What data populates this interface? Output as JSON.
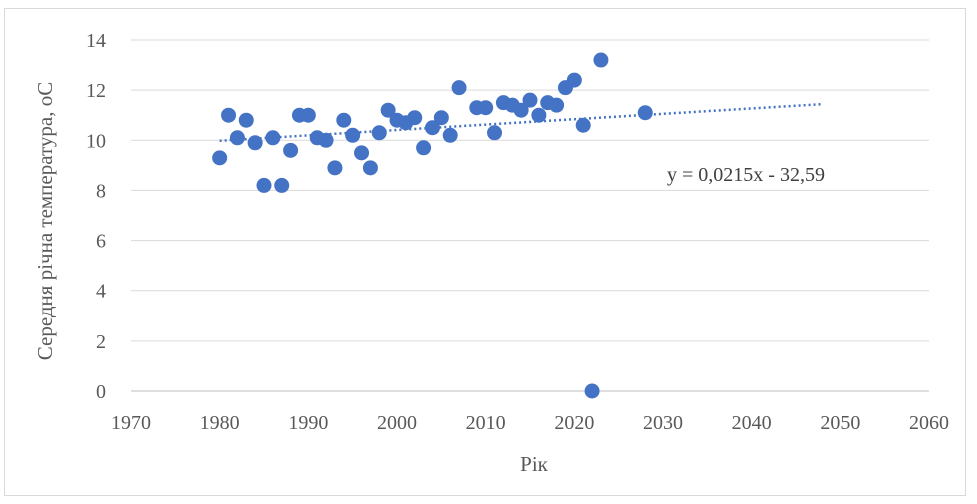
{
  "chart_data": {
    "type": "scatter",
    "title": "",
    "xlabel": "Рік",
    "ylabel": "Середня річна температура, оС",
    "xlim": [
      1970,
      2060
    ],
    "ylim": [
      0,
      14
    ],
    "x_ticks": [
      "1970",
      "1980",
      "1990",
      "2000",
      "2010",
      "2020",
      "2030",
      "2040",
      "2050",
      "2060"
    ],
    "y_ticks": [
      "0",
      "2",
      "4",
      "6",
      "8",
      "10",
      "12",
      "14"
    ],
    "grid": "horizontal",
    "legend": "none",
    "series": [
      {
        "marker_color": "#4472c4",
        "x": [
          1980,
          1981,
          1982,
          1983,
          1984,
          1985,
          1986,
          1987,
          1988,
          1989,
          1990,
          1991,
          1992,
          1993,
          1994,
          1995,
          1996,
          1997,
          1998,
          1999,
          2000,
          2001,
          2002,
          2003,
          2004,
          2005,
          2006,
          2007,
          2009,
          2010,
          2011,
          2012,
          2013,
          2014,
          2015,
          2016,
          2017,
          2018,
          2019,
          2020,
          2021,
          2022,
          2023,
          2028
        ],
        "y": [
          9.3,
          11.0,
          10.1,
          10.8,
          9.9,
          8.2,
          10.1,
          8.2,
          9.6,
          11.0,
          11.0,
          10.1,
          10.0,
          8.9,
          10.8,
          10.2,
          9.5,
          8.9,
          10.3,
          11.2,
          10.8,
          10.7,
          10.9,
          9.7,
          10.5,
          10.9,
          10.2,
          12.1,
          11.3,
          11.3,
          10.3,
          11.5,
          11.4,
          11.2,
          11.6,
          11.0,
          11.5,
          11.4,
          12.1,
          12.4,
          10.6,
          0.0,
          13.2,
          11.1
        ]
      }
    ],
    "trendline": {
      "type": "linear",
      "x_range": [
        1980,
        2048
      ],
      "slope": 0.0215,
      "intercept": -32.59,
      "equation_label": "y = 0,0215x - 32,59",
      "color": "#4472c4",
      "style": "dotted"
    }
  }
}
